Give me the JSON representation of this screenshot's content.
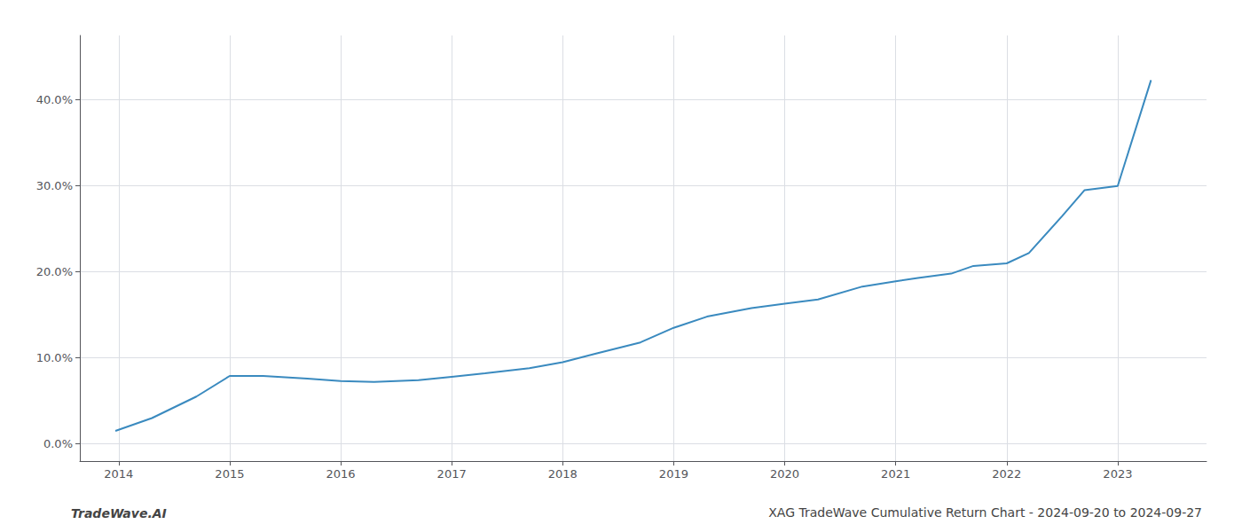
{
  "chart_data": {
    "type": "line",
    "title": "XAG TradeWave Cumulative Return Chart - 2024-09-20 to 2024-09-27",
    "annotations": [
      "TradeWave.AI"
    ],
    "x": [
      2013.97,
      2014.3,
      2014.7,
      2015.0,
      2015.3,
      2015.7,
      2016.0,
      2016.3,
      2016.7,
      2017.0,
      2017.3,
      2017.7,
      2018.0,
      2018.3,
      2018.7,
      2019.0,
      2019.3,
      2019.7,
      2020.0,
      2020.3,
      2020.7,
      2021.0,
      2021.2,
      2021.5,
      2021.7,
      2022.0,
      2022.2,
      2022.5,
      2022.7,
      2023.0,
      2023.3
    ],
    "values": [
      0.015,
      0.03,
      0.055,
      0.079,
      0.079,
      0.076,
      0.073,
      0.072,
      0.074,
      0.078,
      0.082,
      0.088,
      0.095,
      0.105,
      0.118,
      0.135,
      0.148,
      0.158,
      0.163,
      0.168,
      0.183,
      0.189,
      0.193,
      0.198,
      0.207,
      0.21,
      0.222,
      0.265,
      0.295,
      0.3,
      0.423
    ],
    "color": "#3a8abf",
    "xlim": [
      2013.65,
      2023.8
    ],
    "ylim": [
      -0.02,
      0.475
    ],
    "xticks": [
      2014,
      2015,
      2016,
      2017,
      2018,
      2019,
      2020,
      2021,
      2022,
      2023
    ],
    "yticks": [
      {
        "value": 0.0,
        "label": "0.0%"
      },
      {
        "value": 0.1,
        "label": "10.0%"
      },
      {
        "value": 0.2,
        "label": "20.0%"
      },
      {
        "value": 0.3,
        "label": "30.0%"
      },
      {
        "value": 0.4,
        "label": "40.0%"
      }
    ],
    "grid": true
  }
}
